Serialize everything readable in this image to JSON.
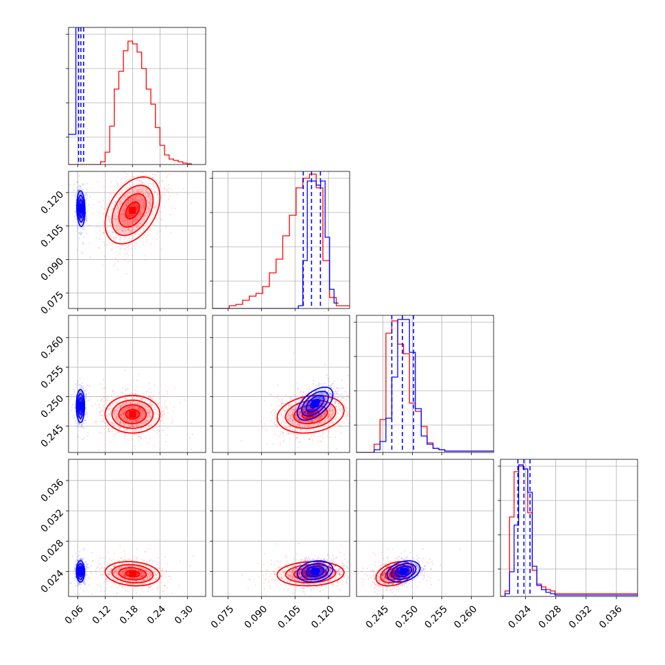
{
  "chart_data": {
    "type": "scatter",
    "title": "",
    "layout": "corner plot (4 parameters, lower triangle)",
    "series": [
      {
        "name": "",
        "color": "#0000ff",
        "description": "blue posterior samples"
      },
      {
        "name": "",
        "color": "#ff0000",
        "description": "red posterior samples"
      }
    ],
    "parameters": [
      {
        "index": 0,
        "range": [
          0.04,
          0.34
        ],
        "ticks": [
          "0.06",
          "0.12",
          "0.18",
          "0.24",
          "0.30"
        ],
        "blue_quantiles": [
          0.062,
          0.067,
          0.073
        ],
        "blue_peak": 0.068,
        "red_peak": 0.18
      },
      {
        "index": 1,
        "range": [
          0.068,
          0.1295
        ],
        "ticks": [
          "0.075",
          "0.090",
          "0.105",
          "0.120"
        ],
        "blue_quantiles": [
          0.1087,
          0.1124,
          0.1164
        ],
        "blue_peak": 0.113,
        "red_peak": 0.112
      },
      {
        "index": 2,
        "range": [
          0.2405,
          0.2638
        ],
        "ticks": [
          "0.245",
          "0.250",
          "0.255",
          "0.260"
        ],
        "blue_quantiles": [
          0.2465,
          0.2483,
          0.2502
        ],
        "blue_peak": 0.248,
        "red_peak": 0.2468
      },
      {
        "index": 3,
        "range": [
          0.0207,
          0.0388
        ],
        "ticks": [
          "0.024",
          "0.028",
          "0.032",
          "0.036"
        ],
        "blue_quantiles": [
          0.023,
          0.0238,
          0.0246
        ],
        "blue_peak": 0.0238,
        "red_peak": 0.0236
      }
    ],
    "hist1d": {
      "blue": [
        {
          "x": [
            0.04,
            0.052,
            0.056,
            0.06,
            0.064,
            0.068,
            0.072,
            0.076,
            0.08
          ],
          "y": [
            0.22,
            0.22,
            1.05,
            1.05,
            1.05,
            1.05,
            1.05,
            1.05,
            0.0
          ]
        },
        {
          "x": [
            0.068,
            0.1065,
            0.1085,
            0.1105,
            0.1125,
            0.1145,
            0.1165,
            0.1185,
            0.1205,
            0.1225,
            0.1245
          ],
          "y": [
            0.0,
            0.02,
            0.35,
            0.93,
            0.93,
            0.9,
            0.93,
            0.52,
            0.14,
            0.04,
            0.0
          ]
        },
        {
          "x": [
            0.2405,
            0.2435,
            0.2445,
            0.2455,
            0.2465,
            0.2475,
            0.2485,
            0.2495,
            0.2505,
            0.2515,
            0.2525,
            0.2535,
            0.2545,
            0.2555,
            0.2638
          ],
          "y": [
            0.0,
            0.02,
            0.08,
            0.25,
            0.55,
            0.97,
            0.97,
            0.73,
            0.32,
            0.12,
            0.06,
            0.03,
            0.02,
            0.01,
            0.0
          ]
        },
        {
          "x": [
            0.0207,
            0.0213,
            0.0219,
            0.0225,
            0.0231,
            0.0237,
            0.0243,
            0.0249,
            0.0255,
            0.0261,
            0.0267,
            0.0273,
            0.0279,
            0.0388
          ],
          "y": [
            0.0,
            0.02,
            0.18,
            0.52,
            0.96,
            0.93,
            0.76,
            0.22,
            0.08,
            0.05,
            0.03,
            0.02,
            0.01,
            0.0
          ]
        }
      ],
      "red": [
        {
          "x": [
            0.04,
            0.11,
            0.12,
            0.13,
            0.14,
            0.15,
            0.16,
            0.17,
            0.18,
            0.19,
            0.2,
            0.21,
            0.22,
            0.23,
            0.24,
            0.25,
            0.26,
            0.27,
            0.28,
            0.29,
            0.3,
            0.31
          ],
          "y": [
            0.0,
            0.02,
            0.09,
            0.28,
            0.55,
            0.68,
            0.83,
            0.9,
            0.88,
            0.82,
            0.7,
            0.55,
            0.44,
            0.27,
            0.14,
            0.07,
            0.04,
            0.03,
            0.02,
            0.01,
            0.005,
            0.0
          ]
        },
        {
          "x": [
            0.068,
            0.0755,
            0.0785,
            0.0815,
            0.0845,
            0.0875,
            0.0905,
            0.0935,
            0.0965,
            0.0995,
            0.1025,
            0.1055,
            0.1085,
            0.1115,
            0.1145,
            0.1175,
            0.1205,
            0.1235,
            0.1295
          ],
          "y": [
            0.0,
            0.02,
            0.03,
            0.06,
            0.09,
            0.11,
            0.16,
            0.26,
            0.36,
            0.53,
            0.68,
            0.88,
            0.95,
            0.98,
            0.88,
            0.35,
            0.08,
            0.02,
            0.0
          ]
        },
        {
          "x": [
            0.2405,
            0.2435,
            0.2445,
            0.2455,
            0.2465,
            0.2475,
            0.2485,
            0.2495,
            0.2505,
            0.2515,
            0.2525,
            0.2535,
            0.2545,
            0.2555,
            0.2638
          ],
          "y": [
            0.0,
            0.06,
            0.24,
            0.87,
            0.96,
            0.79,
            0.72,
            0.36,
            0.3,
            0.19,
            0.07,
            0.03,
            0.02,
            0.01,
            0.0
          ]
        },
        {
          "x": [
            0.0207,
            0.0213,
            0.0219,
            0.0225,
            0.0231,
            0.0237,
            0.0243,
            0.0249,
            0.0255,
            0.0261,
            0.0267,
            0.0273,
            0.0279,
            0.0388
          ],
          "y": [
            0.0,
            0.04,
            0.58,
            0.91,
            0.95,
            0.93,
            0.61,
            0.19,
            0.09,
            0.07,
            0.05,
            0.04,
            0.02,
            0.0
          ]
        }
      ]
    },
    "contours2d": {
      "blue": {
        "1-0": {
          "center": [
            0.067,
            0.1128
          ],
          "spread": [
            0.0045,
            0.004
          ],
          "rho": -0.1
        },
        "2-0": {
          "center": [
            0.066,
            0.2484
          ],
          "spread": [
            0.0045,
            0.0014
          ],
          "rho": 0.0
        },
        "3-0": {
          "center": [
            0.066,
            0.024
          ],
          "spread": [
            0.0045,
            0.0007
          ],
          "rho": 0.0
        },
        "2-1": {
          "center": [
            0.114,
            0.2488
          ],
          "spread": [
            0.004,
            0.0014
          ],
          "rho": 0.55
        },
        "3-1": {
          "center": [
            0.114,
            0.024
          ],
          "spread": [
            0.004,
            0.0007
          ],
          "rho": 0.2
        },
        "3-2": {
          "center": [
            0.2485,
            0.024
          ],
          "spread": [
            0.0014,
            0.0007
          ],
          "rho": 0.3
        }
      },
      "red": {
        "1-0": {
          "center": [
            0.18,
            0.112
          ],
          "spread": [
            0.03,
            0.0075
          ],
          "rho": 0.4
        },
        "2-0": {
          "center": [
            0.18,
            0.247
          ],
          "spread": [
            0.03,
            0.0016
          ],
          "rho": 0.0
        },
        "3-0": {
          "center": [
            0.18,
            0.0237
          ],
          "spread": [
            0.03,
            0.0008
          ],
          "rho": -0.15
        },
        "2-1": {
          "center": [
            0.112,
            0.247
          ],
          "spread": [
            0.0075,
            0.0016
          ],
          "rho": 0.2
        },
        "3-1": {
          "center": [
            0.112,
            0.0237
          ],
          "spread": [
            0.0075,
            0.0008
          ],
          "rho": 0.1
        },
        "3-2": {
          "center": [
            0.247,
            0.0237
          ],
          "spread": [
            0.0016,
            0.0008
          ],
          "rho": 0.35
        }
      }
    },
    "contour_levels": [
      0.5,
      1.0,
      1.5,
      2.0
    ],
    "grid": true,
    "xlabels": [
      "",
      "",
      "",
      ""
    ],
    "ylabels": [
      "",
      "",
      "",
      ""
    ]
  }
}
